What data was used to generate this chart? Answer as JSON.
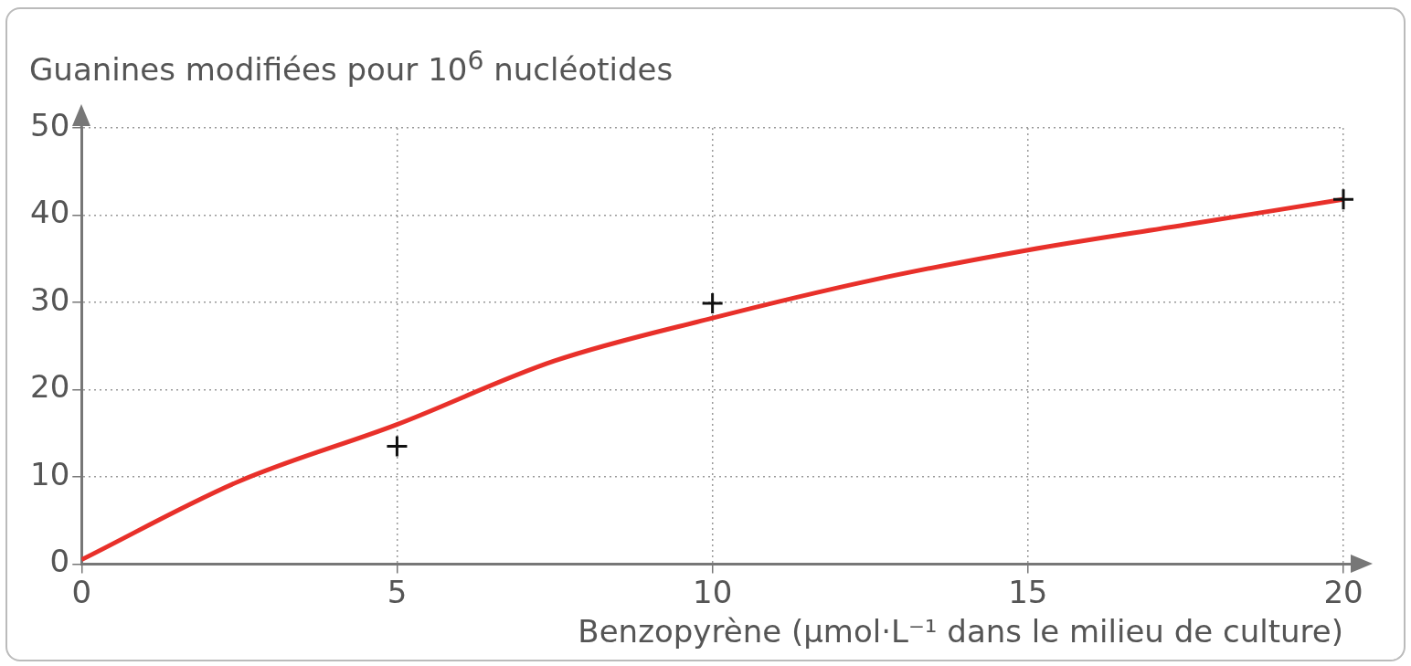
{
  "chart_data": {
    "type": "line",
    "ylabel": "Guanines modifiées pour 10$^{6}$ nucléotides",
    "xlabel": "Benzopyrène (µmol·L⁻¹ dans le milieu de culture)",
    "xlim": [
      0,
      20
    ],
    "ylim": [
      0,
      50
    ],
    "xticks": [
      0,
      5,
      10,
      15,
      20
    ],
    "yticks": [
      0,
      10,
      20,
      30,
      40,
      50
    ],
    "grid": true,
    "legend": false,
    "series": [
      {
        "type": "line",
        "color": "#e8302a",
        "marker": "none",
        "line_style": "solid",
        "x": [
          0,
          2.5,
          5,
          7.5,
          10,
          12.5,
          15,
          17.5,
          20
        ],
        "values": [
          0.5,
          9.5,
          16,
          23.3,
          28.2,
          32.5,
          36,
          38.9,
          41.8
        ]
      },
      {
        "type": "scatter",
        "color": "#111111",
        "marker": "cross",
        "x": [
          5,
          10,
          20
        ],
        "values": [
          13.5,
          29.9,
          41.8
        ]
      }
    ]
  }
}
